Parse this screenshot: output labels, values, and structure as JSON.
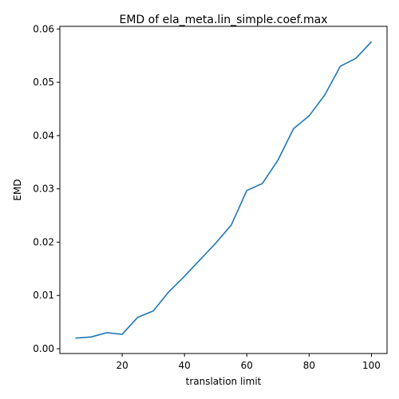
{
  "chart_data": {
    "type": "line",
    "title": "EMD of ela_meta.lin_simple.coef.max",
    "xlabel": "translation limit",
    "ylabel": "EMD",
    "xlim": [
      0,
      105
    ],
    "ylim": [
      -0.0009,
      0.0605
    ],
    "x_ticks": [
      20,
      40,
      60,
      80,
      100
    ],
    "y_ticks": [
      0.0,
      0.01,
      0.02,
      0.03,
      0.04,
      0.05,
      0.06
    ],
    "grid": false,
    "series": [
      {
        "color": "#1f77b4",
        "x": [
          5,
          10,
          15,
          20,
          25,
          30,
          35,
          40,
          45,
          50,
          55,
          60,
          65,
          70,
          75,
          80,
          85,
          90,
          95,
          100
        ],
        "y": [
          0.002,
          0.0022,
          0.003,
          0.0027,
          0.0059,
          0.0071,
          0.0107,
          0.0136,
          0.0167,
          0.0198,
          0.0232,
          0.0297,
          0.031,
          0.0354,
          0.0413,
          0.0437,
          0.0476,
          0.053,
          0.0545,
          0.0576
        ]
      }
    ]
  }
}
